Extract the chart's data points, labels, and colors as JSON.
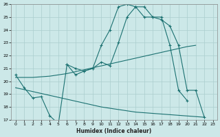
{
  "background_color": "#cce8e8",
  "grid_color": "#aacece",
  "line_color": "#1a7070",
  "xlabel": "Humidex (Indice chaleur)",
  "xlim": [
    -0.5,
    23.5
  ],
  "ylim": [
    17,
    26
  ],
  "xticks": [
    0,
    1,
    2,
    3,
    4,
    5,
    6,
    7,
    8,
    9,
    10,
    11,
    12,
    13,
    14,
    15,
    16,
    17,
    18,
    19,
    20,
    21,
    22,
    23
  ],
  "yticks": [
    17,
    18,
    19,
    20,
    21,
    22,
    23,
    24,
    25,
    26
  ],
  "line_A": {
    "x": [
      0,
      1,
      2,
      3,
      4,
      5,
      6,
      7,
      8,
      9,
      10,
      11,
      12,
      13,
      14,
      15,
      16,
      17,
      18,
      19,
      20
    ],
    "y": [
      20.5,
      19.5,
      18.7,
      18.8,
      17.3,
      16.7,
      21.3,
      21.0,
      20.8,
      21.0,
      21.5,
      21.2,
      23.0,
      25.0,
      25.8,
      25.8,
      25.0,
      25.0,
      22.8,
      19.3,
      18.5
    ],
    "marker": true
  },
  "line_B": {
    "x": [
      6,
      7,
      8,
      9,
      10,
      11,
      12,
      13,
      14,
      15,
      16,
      17,
      18,
      19,
      20,
      21,
      22
    ],
    "y": [
      21.3,
      20.5,
      20.8,
      21.0,
      22.8,
      24.0,
      25.8,
      26.0,
      25.8,
      25.0,
      25.0,
      24.8,
      24.3,
      22.8,
      19.3,
      19.3,
      17.2
    ],
    "marker": true
  },
  "line_C": {
    "x": [
      0,
      2,
      4,
      6,
      8,
      10,
      12,
      14,
      16,
      18,
      20,
      21
    ],
    "y": [
      20.3,
      20.3,
      20.4,
      20.6,
      20.9,
      21.2,
      21.5,
      21.8,
      22.1,
      22.4,
      22.7,
      22.8
    ],
    "marker": false
  },
  "line_D": {
    "x": [
      0,
      2,
      4,
      6,
      8,
      10,
      12,
      14,
      16,
      18,
      20,
      22
    ],
    "y": [
      19.5,
      19.2,
      18.9,
      18.6,
      18.3,
      18.0,
      17.8,
      17.6,
      17.5,
      17.4,
      17.3,
      17.2
    ],
    "marker": false
  }
}
